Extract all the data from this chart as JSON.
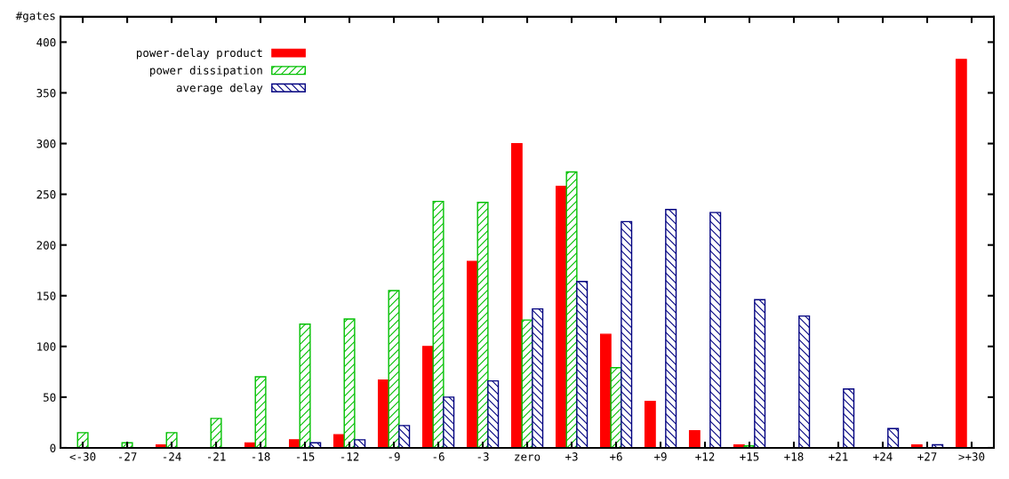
{
  "chart_data": {
    "type": "bar",
    "ylabel": "#gates",
    "categories": [
      "<-30",
      "-27",
      "-24",
      "-21",
      "-18",
      "-15",
      "-12",
      "-9",
      "-6",
      "-3",
      "zero",
      "+3",
      "+6",
      "+9",
      "+12",
      "+15",
      "+18",
      "+21",
      "+24",
      "+27",
      ">+30"
    ],
    "series": [
      {
        "name": "power-delay product",
        "color": "#ff0000",
        "values": [
          0,
          0,
          3,
          0,
          5,
          8,
          13,
          67,
          100,
          184,
          300,
          258,
          112,
          46,
          17,
          3,
          0,
          0,
          0,
          3,
          383
        ]
      },
      {
        "name": "power dissipation",
        "color": "#00c000",
        "values": [
          15,
          5,
          15,
          29,
          70,
          122,
          127,
          155,
          243,
          242,
          126,
          272,
          79,
          0,
          0,
          2,
          0,
          0,
          0,
          0,
          0
        ]
      },
      {
        "name": "average delay",
        "color": "#000080",
        "values": [
          0,
          0,
          0,
          0,
          0,
          5,
          8,
          22,
          50,
          66,
          137,
          164,
          223,
          235,
          232,
          146,
          130,
          58,
          19,
          3,
          0
        ]
      }
    ],
    "ylim": [
      0,
      425
    ],
    "yticks": [
      0,
      50,
      100,
      150,
      200,
      250,
      300,
      350,
      400
    ],
    "grid": false,
    "legend": "top left"
  }
}
